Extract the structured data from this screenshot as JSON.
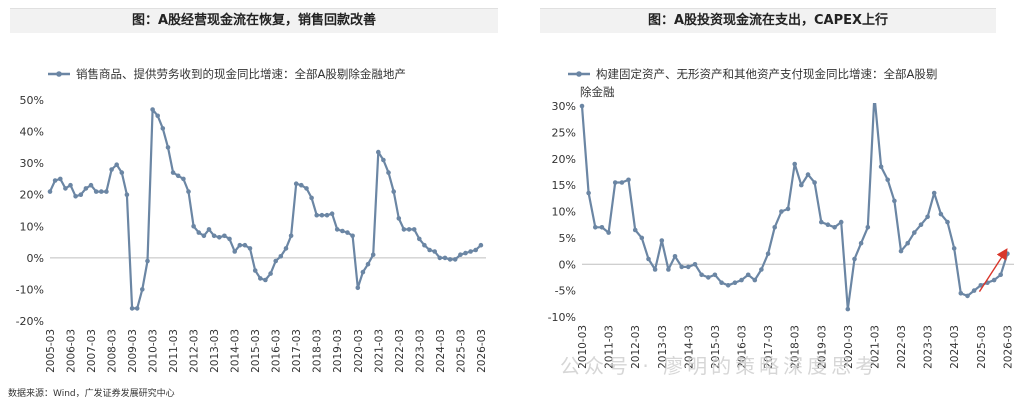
{
  "left_title": "图：A股经营现金流在恢复，销售回款改善",
  "right_title": "图：A股投资现金流在支出，CAPEX上行",
  "source": "数据来源：Wind，广发证券发展研究中心",
  "watermark": "公众号 · 廖明的策略深度思考",
  "chart_data": [
    {
      "type": "line",
      "title": "图：A股经营现金流在恢复，销售回款改善",
      "legend": "销售商品、提供劳务收到的现金同比增速：全部A股剔除金融地产",
      "legend_placement": "top",
      "color": "#6b86a4",
      "ylim": [
        -20,
        50
      ],
      "yticks": [
        -20,
        -10,
        0,
        10,
        20,
        30,
        40,
        50
      ],
      "ytick_labels": [
        "-20%",
        "-10%",
        "0%",
        "10%",
        "20%",
        "30%",
        "40%",
        "50%"
      ],
      "xlim": [
        2005.0,
        2026.25
      ],
      "xtick_labels": [
        "2005-03",
        "2006-03",
        "2007-03",
        "2008-03",
        "2009-03",
        "2010-03",
        "2011-03",
        "2012-03",
        "2013-03",
        "2014-03",
        "2015-03",
        "2016-03",
        "2017-03",
        "2018-03",
        "2019-03",
        "2020-03",
        "2021-03",
        "2022-03",
        "2023-03",
        "2024-03",
        "2025-03",
        "2026-03"
      ],
      "grid": false,
      "x": [
        2005.0,
        2005.25,
        2005.5,
        2005.75,
        2006.0,
        2006.25,
        2006.5,
        2006.75,
        2007.0,
        2007.25,
        2007.5,
        2007.75,
        2008.0,
        2008.25,
        2008.5,
        2008.75,
        2009.0,
        2009.25,
        2009.5,
        2009.75,
        2010.0,
        2010.25,
        2010.5,
        2010.75,
        2011.0,
        2011.25,
        2011.5,
        2011.75,
        2012.0,
        2012.25,
        2012.5,
        2012.75,
        2013.0,
        2013.25,
        2013.5,
        2013.75,
        2014.0,
        2014.25,
        2014.5,
        2014.75,
        2015.0,
        2015.25,
        2015.5,
        2015.75,
        2016.0,
        2016.25,
        2016.5,
        2016.75,
        2017.0,
        2017.25,
        2017.5,
        2017.75,
        2018.0,
        2018.25,
        2018.5,
        2018.75,
        2019.0,
        2019.25,
        2019.5,
        2019.75,
        2020.0,
        2020.25,
        2020.5,
        2020.75,
        2021.0,
        2021.25,
        2021.5,
        2021.75,
        2022.0,
        2022.25,
        2022.5,
        2022.75,
        2023.0,
        2023.25,
        2023.5,
        2023.75,
        2024.0,
        2024.25,
        2024.5,
        2024.75,
        2025.0,
        2025.25,
        2025.5,
        2025.75,
        2026.0
      ],
      "values": [
        21,
        24.5,
        25,
        22,
        23,
        19.5,
        20,
        22,
        23,
        21,
        21,
        21,
        28,
        29.5,
        27,
        20,
        -16,
        -16,
        -10,
        -1,
        47,
        45,
        41,
        35,
        27,
        26,
        25,
        21,
        10,
        8,
        7,
        9,
        7,
        6.5,
        7,
        6,
        2,
        4,
        4,
        3,
        -4,
        -6.5,
        -7,
        -5,
        -1,
        0.5,
        3,
        7,
        23.5,
        23,
        22,
        19,
        13.5,
        13.5,
        13.5,
        14,
        9,
        8.5,
        8,
        7,
        -9.5,
        -4.5,
        -2,
        1,
        33.5,
        31,
        27,
        21,
        12.5,
        9,
        9,
        9,
        6,
        4,
        2.5,
        2,
        0,
        0,
        -0.5,
        -0.5,
        1,
        1.5,
        2,
        2.5,
        4
      ]
    },
    {
      "type": "line",
      "title": "图：A股投资现金流在支出，CAPEX上行",
      "legend": "构建固定资产、无形资产和其他资产支付现金同比增速：全部A股剔除金融",
      "legend_placement": "top",
      "color": "#6b86a4",
      "ylim": [
        -10,
        30
      ],
      "yticks": [
        -10,
        -5,
        0,
        5,
        10,
        15,
        20,
        25,
        30
      ],
      "ytick_labels": [
        "-10%",
        "-5%",
        "0%",
        "5%",
        "10%",
        "15%",
        "20%",
        "25%",
        "30%"
      ],
      "xlim": [
        2010.0,
        2026.25
      ],
      "xtick_labels": [
        "2010-03",
        "2011-03",
        "2012-03",
        "2013-03",
        "2014-03",
        "2015-03",
        "2016-03",
        "2017-03",
        "2018-03",
        "2019-03",
        "2020-03",
        "2021-03",
        "2022-03",
        "2023-03",
        "2024-03",
        "2025-03",
        "2026-03"
      ],
      "grid": false,
      "annotation": "red arrow indicating upward trend",
      "x": [
        2010.0,
        2010.25,
        2010.5,
        2010.75,
        2011.0,
        2011.25,
        2011.5,
        2011.75,
        2012.0,
        2012.25,
        2012.5,
        2012.75,
        2013.0,
        2013.25,
        2013.5,
        2013.75,
        2014.0,
        2014.25,
        2014.5,
        2014.75,
        2015.0,
        2015.25,
        2015.5,
        2015.75,
        2016.0,
        2016.25,
        2016.5,
        2016.75,
        2017.0,
        2017.25,
        2017.5,
        2017.75,
        2018.0,
        2018.25,
        2018.5,
        2018.75,
        2019.0,
        2019.25,
        2019.5,
        2019.75,
        2020.0,
        2020.25,
        2020.5,
        2020.75,
        2021.0,
        2021.25,
        2021.5,
        2021.75,
        2022.0,
        2022.25,
        2022.5,
        2022.75,
        2023.0,
        2023.25,
        2023.5,
        2023.75,
        2024.0,
        2024.25,
        2024.5,
        2024.75,
        2025.0,
        2025.25,
        2025.5,
        2025.75,
        2026.0
      ],
      "values": [
        30,
        13.5,
        7,
        7,
        6,
        15.5,
        15.5,
        16,
        6.5,
        5,
        1,
        -1,
        4.5,
        -1,
        1.5,
        -0.5,
        -0.5,
        0,
        -2,
        -2.5,
        -2,
        -3.5,
        -4,
        -3.5,
        -3,
        -2,
        -3,
        -1,
        2,
        7,
        10,
        10.5,
        19,
        15,
        17,
        15.5,
        8,
        7.5,
        7,
        8,
        -8.5,
        1,
        4,
        7,
        32,
        18.5,
        16,
        12,
        2.5,
        4,
        6,
        7.5,
        9,
        13.5,
        9.5,
        8,
        3,
        -5.5,
        -6,
        -5,
        -4,
        -3.5,
        -3,
        -2,
        2
      ]
    }
  ]
}
